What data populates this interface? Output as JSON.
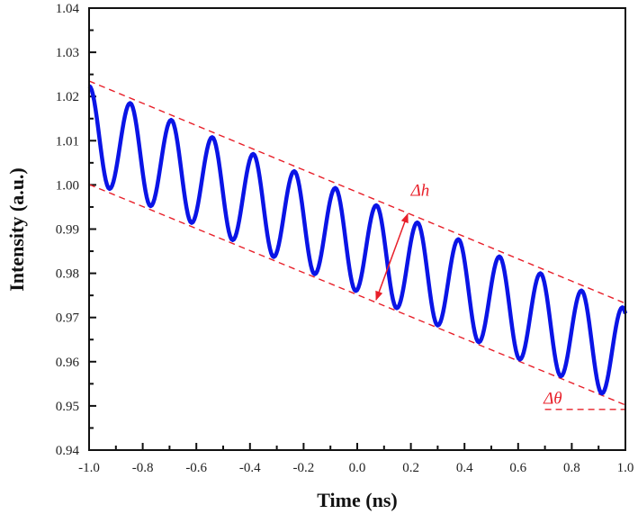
{
  "chart_data": {
    "type": "line",
    "xlabel": "Time (ns)",
    "ylabel": "Intensity (a.u.)",
    "xlim": [
      -1.0,
      1.0
    ],
    "ylim": [
      0.94,
      1.04
    ],
    "xticks": [
      "-1.0",
      "-0.8",
      "-0.6",
      "-0.4",
      "-0.2",
      "0.0",
      "0.2",
      "0.4",
      "0.6",
      "0.8",
      "1.0"
    ],
    "yticks": [
      "0.94",
      "0.95",
      "0.96",
      "0.97",
      "0.98",
      "0.99",
      "1.00",
      "1.01",
      "1.02",
      "1.03",
      "1.04"
    ],
    "grid": false,
    "series": [
      {
        "color": "#0a14e6",
        "peaks": {
          "x": [
            -1.0,
            -0.847,
            -0.694,
            -0.541,
            -0.388,
            -0.235,
            -0.082,
            0.071,
            0.224,
            0.377,
            0.53,
            0.683,
            0.836,
            0.989
          ],
          "y": [
            1.0224,
            1.0185,
            1.0147,
            1.0108,
            1.007,
            1.0031,
            0.9993,
            0.9954,
            0.9915,
            0.9877,
            0.9838,
            0.98,
            0.9761,
            0.9723
          ]
        },
        "troughs": {
          "x": [
            -0.9235,
            -0.7705,
            -0.6175,
            -0.4645,
            -0.3115,
            -0.1585,
            -0.0055,
            0.1475,
            0.3005,
            0.4535,
            0.6065,
            0.7595,
            0.9125
          ],
          "y": [
            0.9991,
            0.9952,
            0.9914,
            0.9875,
            0.9837,
            0.9798,
            0.976,
            0.9721,
            0.9682,
            0.9644,
            0.9605,
            0.9567,
            0.9528
          ]
        },
        "end": {
          "x": 1.0,
          "y": 0.9709
        }
      }
    ],
    "envelopes": [
      {
        "name": "upper",
        "x": [
          -1.0,
          1.0
        ],
        "y": [
          1.0235,
          0.9732
        ],
        "color": "#e8202a",
        "style": "dashed"
      },
      {
        "name": "lower",
        "x": [
          -1.0,
          1.0
        ],
        "y": [
          1.0001,
          0.9502
        ],
        "color": "#e8202a",
        "style": "dashed"
      },
      {
        "name": "horizontal-reference",
        "x": [
          0.7,
          1.0
        ],
        "y": [
          0.9492,
          0.9492
        ],
        "color": "#e8202a",
        "style": "dashed"
      }
    ],
    "annotations": [
      {
        "text": "Δh",
        "x": 0.2,
        "y": 0.9975,
        "color": "#e8202a"
      },
      {
        "text": "Δθ",
        "x": 0.695,
        "y": 0.9505,
        "color": "#e8202a"
      }
    ],
    "arrow": {
      "from": [
        0.0705,
        0.974
      ],
      "to": [
        0.188,
        0.9934
      ],
      "double_headed": true,
      "color": "#e8202a"
    }
  }
}
